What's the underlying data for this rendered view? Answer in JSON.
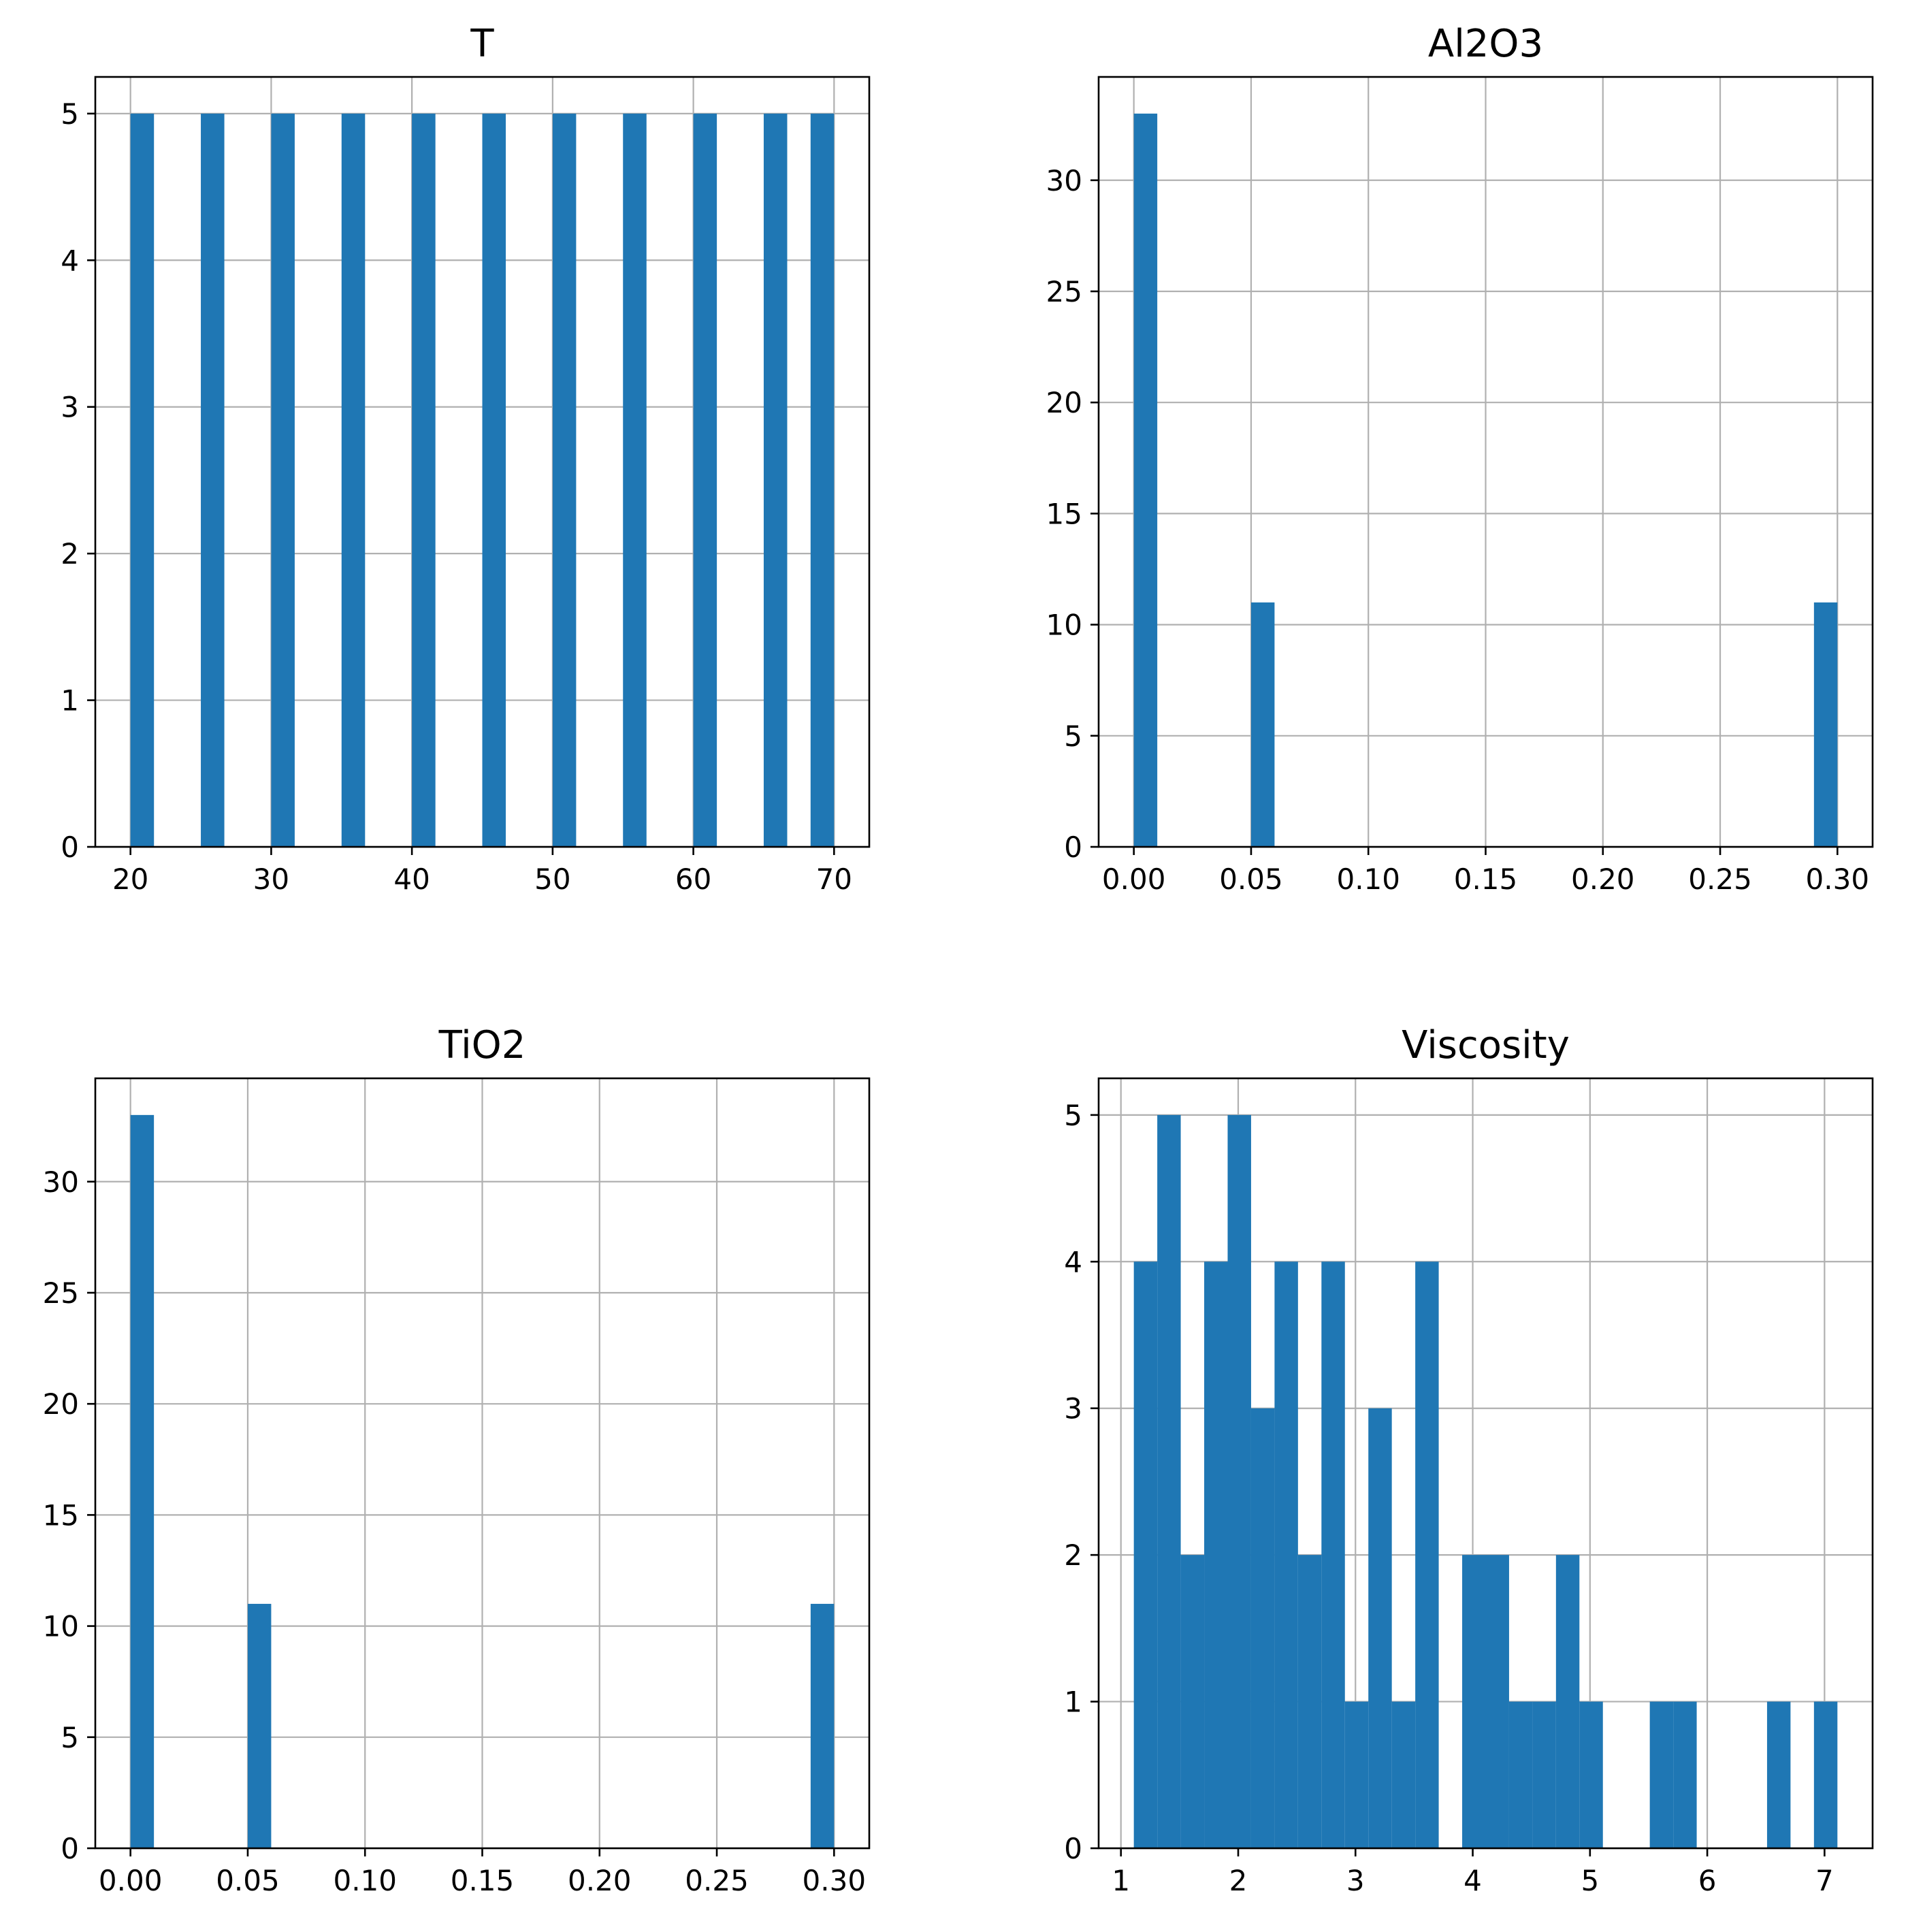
{
  "chart_data": [
    {
      "type": "bar",
      "title": "T",
      "xlim": [
        17.5,
        72.5
      ],
      "ylim": [
        0,
        5.25
      ],
      "xticks": [
        "20",
        "30",
        "40",
        "50",
        "60",
        "70"
      ],
      "xtick_values": [
        20,
        30,
        40,
        50,
        60,
        70
      ],
      "yticks": [
        "0",
        "1",
        "2",
        "3",
        "4",
        "5"
      ],
      "ytick_values": [
        0,
        1,
        2,
        3,
        4,
        5
      ],
      "grid": true,
      "bins": [
        {
          "x0": 20.0,
          "x1": 21.67,
          "count": 5
        },
        {
          "x0": 25.0,
          "x1": 26.67,
          "count": 5
        },
        {
          "x0": 30.0,
          "x1": 31.67,
          "count": 5
        },
        {
          "x0": 35.0,
          "x1": 36.67,
          "count": 5
        },
        {
          "x0": 40.0,
          "x1": 41.67,
          "count": 5
        },
        {
          "x0": 45.0,
          "x1": 46.67,
          "count": 5
        },
        {
          "x0": 50.0,
          "x1": 51.67,
          "count": 5
        },
        {
          "x0": 55.0,
          "x1": 56.67,
          "count": 5
        },
        {
          "x0": 60.0,
          "x1": 61.67,
          "count": 5
        },
        {
          "x0": 65.0,
          "x1": 66.67,
          "count": 5
        },
        {
          "x0": 68.33,
          "x1": 70.0,
          "count": 5
        }
      ]
    },
    {
      "type": "bar",
      "title": "Al2O3",
      "xlim": [
        -0.015,
        0.315
      ],
      "ylim": [
        0,
        34.65
      ],
      "xticks": [
        "0.00",
        "0.05",
        "0.10",
        "0.15",
        "0.20",
        "0.25",
        "0.30"
      ],
      "xtick_values": [
        0,
        0.05,
        0.1,
        0.15,
        0.2,
        0.25,
        0.3
      ],
      "yticks": [
        "0",
        "5",
        "10",
        "15",
        "20",
        "25",
        "30"
      ],
      "ytick_values": [
        0,
        5,
        10,
        15,
        20,
        25,
        30
      ],
      "grid": true,
      "bins": [
        {
          "x0": 0.0,
          "x1": 0.01,
          "count": 33
        },
        {
          "x0": 0.05,
          "x1": 0.06,
          "count": 11
        },
        {
          "x0": 0.29,
          "x1": 0.3,
          "count": 11
        }
      ]
    },
    {
      "type": "bar",
      "title": "TiO2",
      "xlim": [
        -0.015,
        0.315
      ],
      "ylim": [
        0,
        34.65
      ],
      "xticks": [
        "0.00",
        "0.05",
        "0.10",
        "0.15",
        "0.20",
        "0.25",
        "0.30"
      ],
      "xtick_values": [
        0,
        0.05,
        0.1,
        0.15,
        0.2,
        0.25,
        0.3
      ],
      "yticks": [
        "0",
        "5",
        "10",
        "15",
        "20",
        "25",
        "30"
      ],
      "ytick_values": [
        0,
        5,
        10,
        15,
        20,
        25,
        30
      ],
      "grid": true,
      "bins": [
        {
          "x0": 0.0,
          "x1": 0.01,
          "count": 33
        },
        {
          "x0": 0.05,
          "x1": 0.06,
          "count": 11
        },
        {
          "x0": 0.29,
          "x1": 0.3,
          "count": 11
        }
      ]
    },
    {
      "type": "bar",
      "title": "Viscosity",
      "xlim": [
        0.81,
        7.41
      ],
      "ylim": [
        0,
        5.25
      ],
      "xticks": [
        "1",
        "2",
        "3",
        "4",
        "5",
        "6",
        "7"
      ],
      "xtick_values": [
        1,
        2,
        3,
        4,
        5,
        6,
        7
      ],
      "yticks": [
        "0",
        "1",
        "2",
        "3",
        "4",
        "5"
      ],
      "ytick_values": [
        0,
        1,
        2,
        3,
        4,
        5
      ],
      "grid": true,
      "bins": [
        {
          "x0": 1.11,
          "x1": 1.31,
          "count": 4
        },
        {
          "x0": 1.31,
          "x1": 1.51,
          "count": 5
        },
        {
          "x0": 1.51,
          "x1": 1.71,
          "count": 2
        },
        {
          "x0": 1.71,
          "x1": 1.91,
          "count": 4
        },
        {
          "x0": 1.91,
          "x1": 2.11,
          "count": 5
        },
        {
          "x0": 2.11,
          "x1": 2.31,
          "count": 3
        },
        {
          "x0": 2.31,
          "x1": 2.51,
          "count": 4
        },
        {
          "x0": 2.51,
          "x1": 2.71,
          "count": 2
        },
        {
          "x0": 2.71,
          "x1": 2.91,
          "count": 4
        },
        {
          "x0": 2.91,
          "x1": 3.11,
          "count": 1
        },
        {
          "x0": 3.11,
          "x1": 3.31,
          "count": 3
        },
        {
          "x0": 3.31,
          "x1": 3.51,
          "count": 1
        },
        {
          "x0": 3.51,
          "x1": 3.71,
          "count": 4
        },
        {
          "x0": 3.71,
          "x1": 3.91,
          "count": 0
        },
        {
          "x0": 3.91,
          "x1": 4.11,
          "count": 2
        },
        {
          "x0": 4.11,
          "x1": 4.31,
          "count": 2
        },
        {
          "x0": 4.31,
          "x1": 4.51,
          "count": 1
        },
        {
          "x0": 4.51,
          "x1": 4.71,
          "count": 1
        },
        {
          "x0": 4.71,
          "x1": 4.91,
          "count": 2
        },
        {
          "x0": 4.91,
          "x1": 5.11,
          "count": 1
        },
        {
          "x0": 5.11,
          "x1": 5.31,
          "count": 0
        },
        {
          "x0": 5.31,
          "x1": 5.51,
          "count": 0
        },
        {
          "x0": 5.51,
          "x1": 5.71,
          "count": 1
        },
        {
          "x0": 5.71,
          "x1": 5.91,
          "count": 1
        },
        {
          "x0": 5.91,
          "x1": 6.11,
          "count": 0
        },
        {
          "x0": 6.11,
          "x1": 6.31,
          "count": 0
        },
        {
          "x0": 6.31,
          "x1": 6.51,
          "count": 0
        },
        {
          "x0": 6.51,
          "x1": 6.71,
          "count": 1
        },
        {
          "x0": 6.71,
          "x1": 6.91,
          "count": 0
        },
        {
          "x0": 6.91,
          "x1": 7.11,
          "count": 1
        }
      ]
    }
  ]
}
